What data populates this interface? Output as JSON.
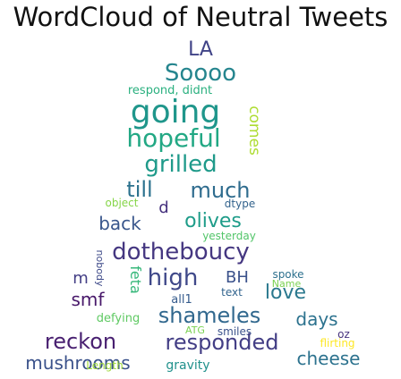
{
  "chart_data": {
    "type": "wordcloud",
    "title": "WordCloud of Neutral Tweets",
    "words": [
      {
        "text": "LA",
        "color": "#404387"
      },
      {
        "text": "Soooo",
        "color": "#25858e"
      },
      {
        "text": "respond, didnt",
        "color": "#2ab07f"
      },
      {
        "text": "going",
        "color": "#1f968b"
      },
      {
        "text": "comes",
        "color": "#addc30"
      },
      {
        "text": "hopeful",
        "color": "#22a884"
      },
      {
        "text": "grilled",
        "color": "#1f9a8a"
      },
      {
        "text": "till",
        "color": "#2c728e"
      },
      {
        "text": "much",
        "color": "#2f6c8e"
      },
      {
        "text": "d",
        "color": "#46327e"
      },
      {
        "text": "object",
        "color": "#86d549"
      },
      {
        "text": "dtype",
        "color": "#33638d"
      },
      {
        "text": "back",
        "color": "#39568c"
      },
      {
        "text": "olives",
        "color": "#1e9c89"
      },
      {
        "text": "yesterday",
        "color": "#52c569"
      },
      {
        "text": "dotheboucy",
        "color": "#453781"
      },
      {
        "text": "high",
        "color": "#3f4889"
      },
      {
        "text": "BH",
        "color": "#3b528b"
      },
      {
        "text": "spoke",
        "color": "#2d708e"
      },
      {
        "text": "Name",
        "color": "#7ad151"
      },
      {
        "text": "love",
        "color": "#2a788e"
      },
      {
        "text": "smf",
        "color": "#48186a"
      },
      {
        "text": "all1",
        "color": "#365c8d"
      },
      {
        "text": "text",
        "color": "#32648e"
      },
      {
        "text": "nobody",
        "color": "#3e4a89"
      },
      {
        "text": "feta",
        "color": "#35b779"
      },
      {
        "text": "m",
        "color": "#433e85"
      },
      {
        "text": "shameles",
        "color": "#31688e"
      },
      {
        "text": "days",
        "color": "#2c728e"
      },
      {
        "text": "defying",
        "color": "#5ec962"
      },
      {
        "text": "ATG",
        "color": "#7ad151"
      },
      {
        "text": "smiles",
        "color": "#3b528b"
      },
      {
        "text": "oz",
        "color": "#46327e"
      },
      {
        "text": "reckon",
        "color": "#481f70"
      },
      {
        "text": "responded",
        "color": "#433e85"
      },
      {
        "text": "flirting",
        "color": "#fde725"
      },
      {
        "text": "mushrooms",
        "color": "#3b528b"
      },
      {
        "text": "Length",
        "color": "#9fda3a"
      },
      {
        "text": "gravity",
        "color": "#21918c"
      },
      {
        "text": "cheese",
        "color": "#2c728e"
      }
    ]
  }
}
